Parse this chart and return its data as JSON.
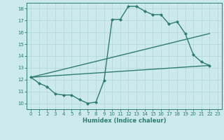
{
  "line1_x": [
    0,
    1,
    2,
    3,
    4,
    5,
    6,
    7,
    8,
    9,
    10,
    11,
    12,
    13,
    14,
    15,
    16,
    17,
    18,
    19,
    20,
    21,
    22
  ],
  "line1_y": [
    12.2,
    11.7,
    11.4,
    10.8,
    10.7,
    10.7,
    10.3,
    10.0,
    10.1,
    11.9,
    17.1,
    17.1,
    18.2,
    18.2,
    17.8,
    17.5,
    17.5,
    16.7,
    16.9,
    15.9,
    14.1,
    13.5,
    13.2
  ],
  "line2_x": [
    0,
    22
  ],
  "line2_y": [
    12.2,
    15.9
  ],
  "line3_x": [
    0,
    22
  ],
  "line3_y": [
    12.2,
    13.2
  ],
  "color": "#2d7d6e",
  "bg_color": "#cce9ec",
  "grid_color": "#afd6db",
  "xlabel": "Humidex (Indice chaleur)",
  "xlim": [
    -0.5,
    23.5
  ],
  "ylim": [
    9.5,
    18.5
  ],
  "yticks": [
    10,
    11,
    12,
    13,
    14,
    15,
    16,
    17,
    18
  ],
  "xticks": [
    0,
    1,
    2,
    3,
    4,
    5,
    6,
    7,
    8,
    9,
    10,
    11,
    12,
    13,
    14,
    15,
    16,
    17,
    18,
    19,
    20,
    21,
    22,
    23
  ],
  "marker": "D",
  "markersize": 2.0,
  "linewidth": 1.0,
  "tick_fontsize": 5.0,
  "xlabel_fontsize": 6.0
}
